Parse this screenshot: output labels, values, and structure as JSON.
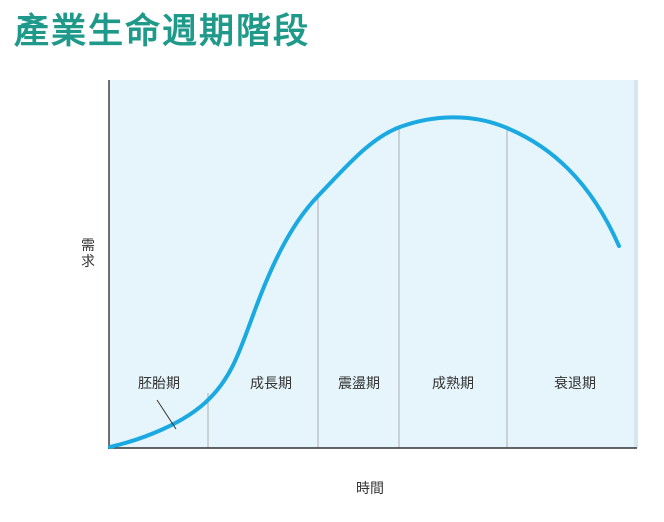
{
  "title": "產業生命週期階段",
  "axes": {
    "y_label": "需求",
    "x_label": "時間"
  },
  "stages": [
    {
      "label": "胚胎期"
    },
    {
      "label": "成長期"
    },
    {
      "label": "震盪期"
    },
    {
      "label": "成熟期"
    },
    {
      "label": "衰退期"
    }
  ],
  "colors": {
    "title": "#1f9a8a",
    "curve": "#1aa9e0",
    "plot_background": "#e6f5fc",
    "divider": "#b5b9bc",
    "axis": "#333333"
  }
}
